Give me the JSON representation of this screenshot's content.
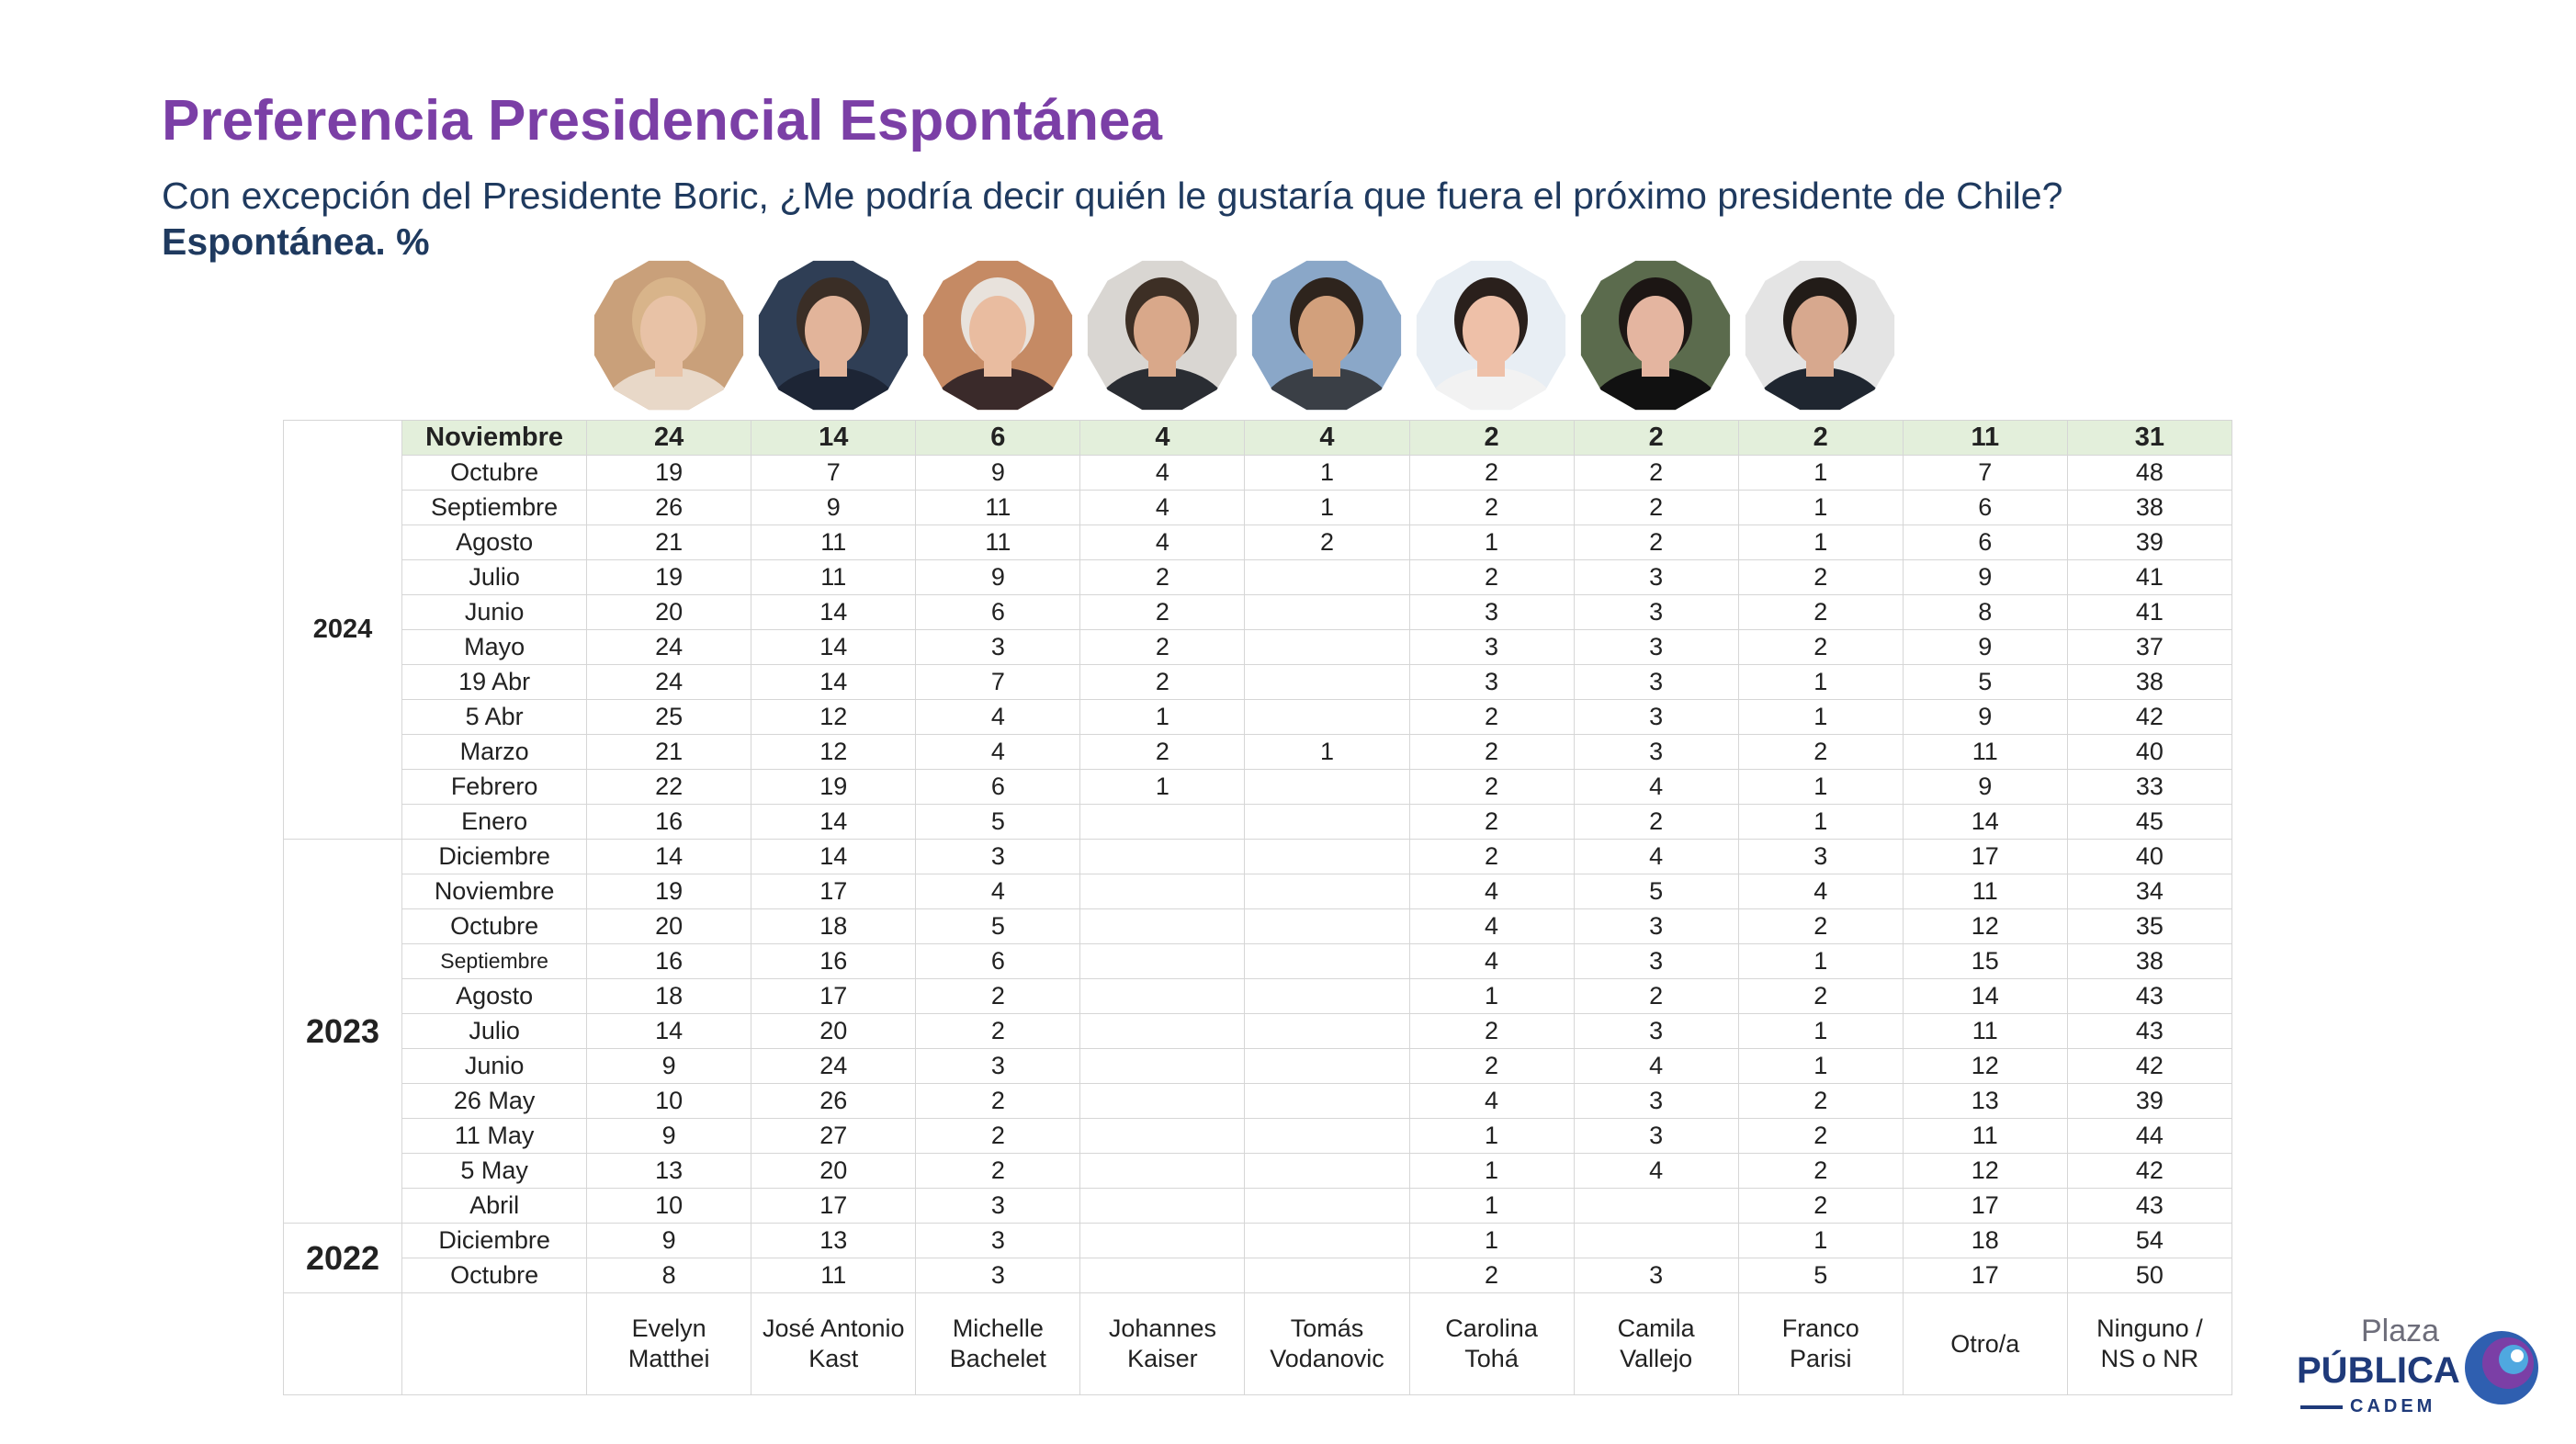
{
  "title": "Preferencia Presidencial Espontánea",
  "subtitle": "Con excepción del Presidente Boric, ¿Me podría decir quién le gustaría que fuera el próximo presidente de Chile?",
  "unit_label": "Espontánea. %",
  "colors": {
    "title": "#7b3fa6",
    "text": "#1f3a5f",
    "highlight_row": "#e3efdb",
    "grid": "#d6d6d6",
    "logo": "#1f3a7a"
  },
  "logo": {
    "line1": "Plaza",
    "line2": "PÚBLICA",
    "line3": "CADEM"
  },
  "chart_data": {
    "type": "table",
    "columns": [
      {
        "line1": "Evelyn",
        "line2": "Matthei"
      },
      {
        "line1": "José Antonio",
        "line2": "Kast"
      },
      {
        "line1": "Michelle",
        "line2": "Bachelet"
      },
      {
        "line1": "Johannes",
        "line2": "Kaiser"
      },
      {
        "line1": "Tomás",
        "line2": "Vodanovic"
      },
      {
        "line1": "Carolina",
        "line2": "Tohá"
      },
      {
        "line1": "Camila",
        "line2": "Vallejo"
      },
      {
        "line1": "Franco",
        "line2": "Parisi"
      },
      {
        "line1": "Otro/a",
        "line2": ""
      },
      {
        "line1": "Ninguno /",
        "line2": "NS o NR"
      }
    ],
    "groups": [
      {
        "year": "2024",
        "rows": [
          {
            "label": "Noviembre",
            "values": [
              "24",
              "14",
              "6",
              "4",
              "4",
              "2",
              "2",
              "2",
              "11",
              "31"
            ],
            "highlight": true
          },
          {
            "label": "Octubre",
            "values": [
              "19",
              "7",
              "9",
              "4",
              "1",
              "2",
              "2",
              "1",
              "7",
              "48"
            ]
          },
          {
            "label": "Septiembre",
            "values": [
              "26",
              "9",
              "11",
              "4",
              "1",
              "2",
              "2",
              "1",
              "6",
              "38"
            ]
          },
          {
            "label": "Agosto",
            "values": [
              "21",
              "11",
              "11",
              "4",
              "2",
              "1",
              "2",
              "1",
              "6",
              "39"
            ]
          },
          {
            "label": "Julio",
            "values": [
              "19",
              "11",
              "9",
              "2",
              "",
              "2",
              "3",
              "2",
              "9",
              "41"
            ]
          },
          {
            "label": "Junio",
            "values": [
              "20",
              "14",
              "6",
              "2",
              "",
              "3",
              "3",
              "2",
              "8",
              "41"
            ]
          },
          {
            "label": "Mayo",
            "values": [
              "24",
              "14",
              "3",
              "2",
              "",
              "3",
              "3",
              "2",
              "9",
              "37"
            ]
          },
          {
            "label": "19 Abr",
            "values": [
              "24",
              "14",
              "7",
              "2",
              "",
              "3",
              "3",
              "1",
              "5",
              "38"
            ]
          },
          {
            "label": "5 Abr",
            "values": [
              "25",
              "12",
              "4",
              "1",
              "",
              "2",
              "3",
              "1",
              "9",
              "42"
            ]
          },
          {
            "label": "Marzo",
            "values": [
              "21",
              "12",
              "4",
              "2",
              "1",
              "2",
              "3",
              "2",
              "11",
              "40"
            ]
          },
          {
            "label": "Febrero",
            "values": [
              "22",
              "19",
              "6",
              "1",
              "",
              "2",
              "4",
              "1",
              "9",
              "33"
            ]
          },
          {
            "label": "Enero",
            "values": [
              "16",
              "14",
              "5",
              "",
              "",
              "2",
              "2",
              "1",
              "14",
              "45"
            ]
          }
        ]
      },
      {
        "year": "2023",
        "rows": [
          {
            "label": "Diciembre",
            "values": [
              "14",
              "14",
              "3",
              "",
              "",
              "2",
              "4",
              "3",
              "17",
              "40"
            ]
          },
          {
            "label": "Noviembre",
            "values": [
              "19",
              "17",
              "4",
              "",
              "",
              "4",
              "5",
              "4",
              "11",
              "34"
            ]
          },
          {
            "label": "Octubre",
            "values": [
              "20",
              "18",
              "5",
              "",
              "",
              "4",
              "3",
              "2",
              "12",
              "35"
            ]
          },
          {
            "label": "Septiembre",
            "values": [
              "16",
              "16",
              "6",
              "",
              "",
              "4",
              "3",
              "1",
              "15",
              "38"
            ],
            "small": true
          },
          {
            "label": "Agosto",
            "values": [
              "18",
              "17",
              "2",
              "",
              "",
              "1",
              "2",
              "2",
              "14",
              "43"
            ]
          },
          {
            "label": "Julio",
            "values": [
              "14",
              "20",
              "2",
              "",
              "",
              "2",
              "3",
              "1",
              "11",
              "43"
            ]
          },
          {
            "label": "Junio",
            "values": [
              "9",
              "24",
              "3",
              "",
              "",
              "2",
              "4",
              "1",
              "12",
              "42"
            ]
          },
          {
            "label": "26 May",
            "values": [
              "10",
              "26",
              "2",
              "",
              "",
              "4",
              "3",
              "2",
              "13",
              "39"
            ]
          },
          {
            "label": "11 May",
            "values": [
              "9",
              "27",
              "2",
              "",
              "",
              "1",
              "3",
              "2",
              "11",
              "44"
            ]
          },
          {
            "label": "5 May",
            "values": [
              "13",
              "20",
              "2",
              "",
              "",
              "1",
              "4",
              "2",
              "12",
              "42"
            ]
          },
          {
            "label": "Abril",
            "values": [
              "10",
              "17",
              "3",
              "",
              "",
              "1",
              "",
              "2",
              "17",
              "43"
            ]
          }
        ]
      },
      {
        "year": "2022",
        "rows": [
          {
            "label": "Diciembre",
            "values": [
              "9",
              "13",
              "3",
              "",
              "",
              "1",
              "",
              "1",
              "18",
              "54"
            ]
          },
          {
            "label": "Octubre",
            "values": [
              "8",
              "11",
              "3",
              "",
              "",
              "2",
              "3",
              "5",
              "17",
              "50"
            ]
          }
        ]
      }
    ]
  },
  "photos": [
    {
      "name": "Evelyn Matthei",
      "bg": "#c9a07a",
      "skin": "#e8c2a6",
      "hair": "#d8b48a",
      "suit": "#e8d8c8"
    },
    {
      "name": "José Antonio Kast",
      "bg": "#2f3e55",
      "skin": "#e2b49a",
      "hair": "#3a2e26",
      "suit": "#1d2535"
    },
    {
      "name": "Michelle Bachelet",
      "bg": "#c58a64",
      "skin": "#e9bca0",
      "hair": "#e8e2dc",
      "suit": "#3a2a2a"
    },
    {
      "name": "Johannes Kaiser",
      "bg": "#d9d6d2",
      "skin": "#d9a88a",
      "hair": "#3d2f25",
      "suit": "#2a2d33"
    },
    {
      "name": "Tomás Vodanovic",
      "bg": "#8aa7c8",
      "skin": "#d2a07c",
      "hair": "#2e241d",
      "suit": "#3a3f46"
    },
    {
      "name": "Carolina Tohá",
      "bg": "#e8eef4",
      "skin": "#eec0a8",
      "hair": "#2a201c",
      "suit": "#f2f2f2"
    },
    {
      "name": "Camila Vallejo",
      "bg": "#5b6b4d",
      "skin": "#e4b5a0",
      "hair": "#1c1614",
      "suit": "#111111"
    },
    {
      "name": "Franco Parisi",
      "bg": "#e4e4e4",
      "skin": "#d7a88e",
      "hair": "#221c18",
      "suit": "#1f2630"
    }
  ]
}
